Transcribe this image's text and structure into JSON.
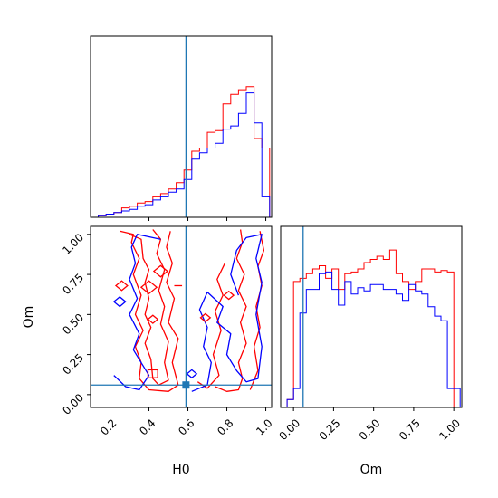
{
  "chart_data": {
    "type": "corner",
    "parameters": [
      "H0",
      "Om"
    ],
    "truth": {
      "H0": 0.59,
      "Om": 0.06
    },
    "colors": {
      "series_a": "#ff0000",
      "series_b": "#0000ff",
      "truth": "#1f77b4"
    },
    "panels": [
      {
        "id": "hist-h0",
        "type": "step-histogram",
        "xlim": [
          0.1,
          1.03
        ],
        "ylim": [
          0,
          1
        ],
        "xticks": [
          0.2,
          0.4,
          0.6,
          0.8,
          1.0
        ],
        "bin_edges": [
          0.1,
          0.14,
          0.18,
          0.22,
          0.26,
          0.3,
          0.34,
          0.38,
          0.42,
          0.46,
          0.5,
          0.54,
          0.58,
          0.62,
          0.66,
          0.7,
          0.74,
          0.78,
          0.82,
          0.86,
          0.9,
          0.94,
          0.98,
          1.02
        ],
        "series": [
          {
            "color_key": "series_a",
            "values": [
              0.0,
              0.01,
              0.02,
              0.03,
              0.06,
              0.07,
              0.09,
              0.1,
              0.13,
              0.15,
              0.18,
              0.22,
              0.3,
              0.42,
              0.44,
              0.54,
              0.55,
              0.72,
              0.78,
              0.81,
              0.83,
              0.5,
              0.44
            ]
          },
          {
            "color_key": "series_b",
            "values": [
              0.0,
              0.01,
              0.02,
              0.03,
              0.04,
              0.05,
              0.07,
              0.08,
              0.11,
              0.13,
              0.16,
              0.18,
              0.24,
              0.37,
              0.41,
              0.44,
              0.47,
              0.56,
              0.58,
              0.66,
              0.79,
              0.6,
              0.13
            ]
          }
        ]
      },
      {
        "id": "contour-h0-om",
        "type": "contour",
        "xlim": [
          0.1,
          1.03
        ],
        "ylim": [
          -0.08,
          1.05
        ],
        "xticks": [
          0.2,
          0.4,
          0.6,
          0.8,
          1.0
        ],
        "xtick_labels": [
          "0.2",
          "0.4",
          "0.6",
          "0.8",
          "1.0"
        ],
        "yticks": [
          0.0,
          0.25,
          0.5,
          0.75,
          1.0
        ],
        "ytick_labels": [
          "0.00",
          "0.25",
          "0.50",
          "0.75",
          "1.00"
        ],
        "xlabel": "H0",
        "ylabel": "Om",
        "contours": [
          {
            "color_key": "series_a",
            "points": [
              [
                0.25,
                1.02
              ],
              [
                0.32,
                1.0
              ],
              [
                0.31,
                0.95
              ],
              [
                0.35,
                0.85
              ],
              [
                0.32,
                0.75
              ],
              [
                0.36,
                0.62
              ],
              [
                0.33,
                0.5
              ],
              [
                0.37,
                0.4
              ],
              [
                0.33,
                0.3
              ],
              [
                0.36,
                0.2
              ],
              [
                0.35,
                0.1
              ],
              [
                0.4,
                0.03
              ],
              [
                0.5,
                0.02
              ],
              [
                0.55,
                0.06
              ],
              [
                0.52,
                0.2
              ],
              [
                0.55,
                0.35
              ],
              [
                0.5,
                0.45
              ],
              [
                0.53,
                0.6
              ],
              [
                0.49,
                0.7
              ],
              [
                0.52,
                0.82
              ],
              [
                0.49,
                0.92
              ],
              [
                0.51,
                1.02
              ]
            ]
          },
          {
            "color_key": "series_a",
            "points": [
              [
                0.3,
                1.0
              ],
              [
                0.36,
                0.97
              ],
              [
                0.37,
                0.85
              ],
              [
                0.4,
                0.78
              ],
              [
                0.38,
                0.7
              ],
              [
                0.4,
                0.6
              ],
              [
                0.38,
                0.5
              ],
              [
                0.41,
                0.42
              ],
              [
                0.38,
                0.32
              ],
              [
                0.41,
                0.22
              ],
              [
                0.42,
                0.1
              ],
              [
                0.45,
                0.06
              ],
              [
                0.5,
                0.09
              ],
              [
                0.48,
                0.2
              ],
              [
                0.5,
                0.33
              ],
              [
                0.46,
                0.44
              ],
              [
                0.48,
                0.55
              ],
              [
                0.45,
                0.65
              ],
              [
                0.48,
                0.78
              ],
              [
                0.44,
                0.88
              ],
              [
                0.46,
                0.97
              ],
              [
                0.42,
                1.03
              ]
            ]
          },
          {
            "color_key": "series_a",
            "points": [
              [
                0.74,
                0.05
              ],
              [
                0.8,
                0.02
              ],
              [
                0.86,
                0.03
              ],
              [
                0.88,
                0.1
              ],
              [
                0.86,
                0.2
              ],
              [
                0.9,
                0.32
              ],
              [
                0.87,
                0.45
              ],
              [
                0.9,
                0.55
              ],
              [
                0.86,
                0.65
              ],
              [
                0.89,
                0.75
              ],
              [
                0.85,
                0.85
              ],
              [
                0.88,
                0.95
              ],
              [
                0.87,
                1.03
              ]
            ]
          },
          {
            "color_key": "series_a",
            "points": [
              [
                0.92,
                0.03
              ],
              [
                0.96,
                0.15
              ],
              [
                0.94,
                0.3
              ],
              [
                0.97,
                0.42
              ],
              [
                0.95,
                0.55
              ],
              [
                0.98,
                0.68
              ],
              [
                0.96,
                0.8
              ],
              [
                0.99,
                0.9
              ],
              [
                0.97,
                1.02
              ]
            ]
          },
          {
            "color_key": "series_a",
            "points": [
              [
                0.65,
                0.08
              ],
              [
                0.7,
                0.04
              ],
              [
                0.76,
                0.12
              ],
              [
                0.73,
                0.25
              ],
              [
                0.77,
                0.4
              ],
              [
                0.74,
                0.52
              ],
              [
                0.78,
                0.62
              ],
              [
                0.75,
                0.72
              ],
              [
                0.79,
                0.82
              ]
            ]
          }
        ],
        "markers": [
          {
            "color_key": "series_a",
            "shape": "diamond",
            "x": 0.26,
            "y": 0.68,
            "size": 0.03
          },
          {
            "color_key": "series_a",
            "shape": "diamond",
            "x": 0.46,
            "y": 0.77,
            "size": 0.035
          },
          {
            "color_key": "series_a",
            "shape": "diamond",
            "x": 0.4,
            "y": 0.67,
            "size": 0.04
          },
          {
            "color_key": "series_a",
            "shape": "diamond",
            "x": 0.69,
            "y": 0.48,
            "size": 0.025
          },
          {
            "color_key": "series_a",
            "shape": "diamond",
            "x": 0.42,
            "y": 0.47,
            "size": 0.025
          },
          {
            "color_key": "series_a",
            "shape": "diamond",
            "x": 0.81,
            "y": 0.62,
            "size": 0.025
          },
          {
            "color_key": "series_a",
            "shape": "square",
            "x": 0.42,
            "y": 0.13,
            "size": 0.025
          },
          {
            "color_key": "series_a",
            "shape": "dash",
            "x": 0.55,
            "y": 0.68,
            "size": 0.02
          },
          {
            "color_key": "series_b",
            "shape": "diamond",
            "x": 0.25,
            "y": 0.58,
            "size": 0.03
          },
          {
            "color_key": "series_b",
            "shape": "diamond",
            "x": 0.62,
            "y": 0.13,
            "size": 0.025
          }
        ]
      },
      {
        "id": "hist-om",
        "type": "step-histogram",
        "xlim": [
          -0.08,
          1.05
        ],
        "ylim": [
          0,
          1
        ],
        "xticks": [
          0.0,
          0.25,
          0.5,
          0.75,
          1.0
        ],
        "xtick_labels": [
          "0.00",
          "0.25",
          "0.50",
          "0.75",
          "1.00"
        ],
        "xlabel": "Om",
        "bin_edges": [
          -0.04,
          0.0,
          0.04,
          0.08,
          0.12,
          0.16,
          0.2,
          0.24,
          0.28,
          0.32,
          0.36,
          0.4,
          0.44,
          0.48,
          0.52,
          0.56,
          0.6,
          0.64,
          0.68,
          0.72,
          0.76,
          0.8,
          0.84,
          0.88,
          0.92,
          0.96,
          1.0,
          1.04
        ],
        "series": [
          {
            "color_key": "series_a",
            "values": [
              0.05,
              0.8,
              0.82,
              0.85,
              0.88,
              0.9,
              0.82,
              0.88,
              0.75,
              0.85,
              0.86,
              0.88,
              0.92,
              0.94,
              0.96,
              0.94,
              1.0,
              0.85,
              0.8,
              0.75,
              0.8,
              0.88,
              0.88,
              0.86,
              0.87,
              0.86,
              0.0
            ]
          },
          {
            "color_key": "series_b",
            "values": [
              0.05,
              0.12,
              0.6,
              0.75,
              0.75,
              0.85,
              0.86,
              0.75,
              0.65,
              0.8,
              0.72,
              0.76,
              0.74,
              0.78,
              0.78,
              0.75,
              0.75,
              0.72,
              0.68,
              0.78,
              0.74,
              0.72,
              0.64,
              0.58,
              0.55,
              0.12,
              0.12
            ]
          }
        ]
      }
    ]
  }
}
